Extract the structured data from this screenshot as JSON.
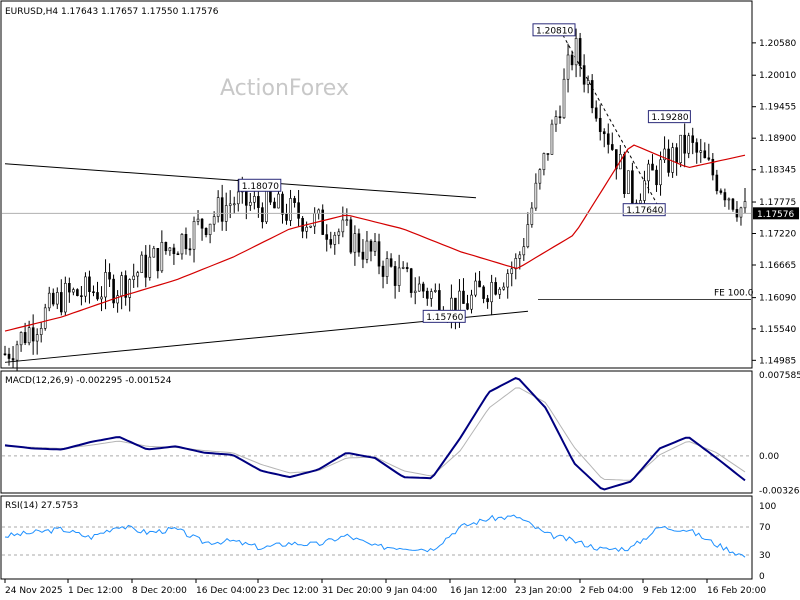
{
  "chart_data": {
    "type": "candlestick",
    "header": "EURUSD,H4  1.17643 1.17657 1.17550 1.17576",
    "watermark": "ActionForex",
    "current_price": {
      "value": 1.17576,
      "label": "1.17576"
    },
    "price_axis": {
      "range": [
        1.14885,
        1.21265
      ],
      "ticks": [
        "1.20580",
        "1.20010",
        "1.19455",
        "1.18900",
        "1.18345",
        "1.17775",
        "1.17220",
        "1.16665",
        "1.16090",
        "1.15540",
        "1.14985"
      ]
    },
    "x_axis": {
      "labels": [
        "24 Nov 2025",
        "1 Dec 12:00",
        "8 Dec 20:00",
        "16 Dec 04:00",
        "23 Dec 12:00",
        "31 Dec 20:00",
        "9 Jan 04:00",
        "16 Jan 12:00",
        "23 Jan 20:00",
        "2 Feb 04:00",
        "9 Feb 12:00",
        "16 Feb 20:00"
      ]
    },
    "annotations": [
      {
        "text": "1.18070",
        "price": 1.1807,
        "x_label_index": 3.4
      },
      {
        "text": "1.15760",
        "price": 1.1576,
        "x_label_index": 6.3
      },
      {
        "text": "1.20810",
        "price": 1.2081,
        "x_label_index": 8.0
      },
      {
        "text": "1.19280",
        "price": 1.1928,
        "x_label_index": 9.8
      },
      {
        "text": "1.17640",
        "price": 1.1764,
        "x_label_index": 9.4
      }
    ],
    "fe_level": {
      "text": "FE 100.0",
      "price": 1.1613
    },
    "trendlines": [
      {
        "from": {
          "x_label_index": 0.0,
          "price": 1.1845
        },
        "to": {
          "x_label_index": 7.4,
          "price": 1.1785
        }
      },
      {
        "from": {
          "x_label_index": 0.0,
          "price": 1.1495
        },
        "to": {
          "x_label_index": 8.2,
          "price": 1.1585
        }
      }
    ],
    "ma_curve": [
      1.155,
      1.1575,
      1.161,
      1.164,
      1.168,
      1.173,
      1.1755,
      1.173,
      1.169,
      1.166,
      1.172,
      1.188,
      1.1838,
      1.186
    ],
    "close_curve": [
      1.151,
      1.161,
      1.163,
      1.1705,
      1.178,
      1.176,
      1.172,
      1.164,
      1.159,
      1.167,
      1.205,
      1.179,
      1.188,
      1.1758
    ],
    "macd": {
      "title": "MACD(12,26,9) -0.002295 -0.001524",
      "range": [
        -0.0033,
        0.0077
      ],
      "ticks": [
        "0.007585",
        "0.00",
        "-0.003264"
      ],
      "main": [
        0.001,
        0.0007,
        0.0006,
        0.0013,
        0.0018,
        0.0006,
        0.0009,
        0.0003,
        0.0001,
        -0.0014,
        -0.002,
        -0.0013,
        0.0003,
        -0.0002,
        -0.002,
        -0.0021,
        0.0017,
        0.006,
        0.0074,
        0.0045,
        -0.0007,
        -0.0032,
        -0.0024,
        0.0007,
        0.0018,
        -0.0002,
        -0.0023
      ],
      "signal": [
        0.0009,
        0.0008,
        0.0007,
        0.001,
        0.0014,
        0.0009,
        0.0008,
        0.0005,
        0.0003,
        -0.0008,
        -0.0016,
        -0.0014,
        -0.0002,
        -0.0001,
        -0.0014,
        -0.0019,
        0.0005,
        0.0045,
        0.0065,
        0.005,
        0.0008,
        -0.0022,
        -0.0023,
        0.0001,
        0.0014,
        0.0003,
        -0.0015
      ]
    },
    "rsi": {
      "title": "RSI(14) 27.5753",
      "range": [
        0,
        100
      ],
      "ticks": [
        "100",
        "70",
        "30",
        "0"
      ],
      "levels": [
        70,
        30
      ],
      "values": [
        57,
        62,
        67,
        55,
        72,
        62,
        67,
        48,
        50,
        40,
        47,
        45,
        58,
        42,
        41,
        38,
        70,
        82,
        85,
        60,
        50,
        38,
        40,
        70,
        66,
        45,
        28
      ]
    }
  }
}
